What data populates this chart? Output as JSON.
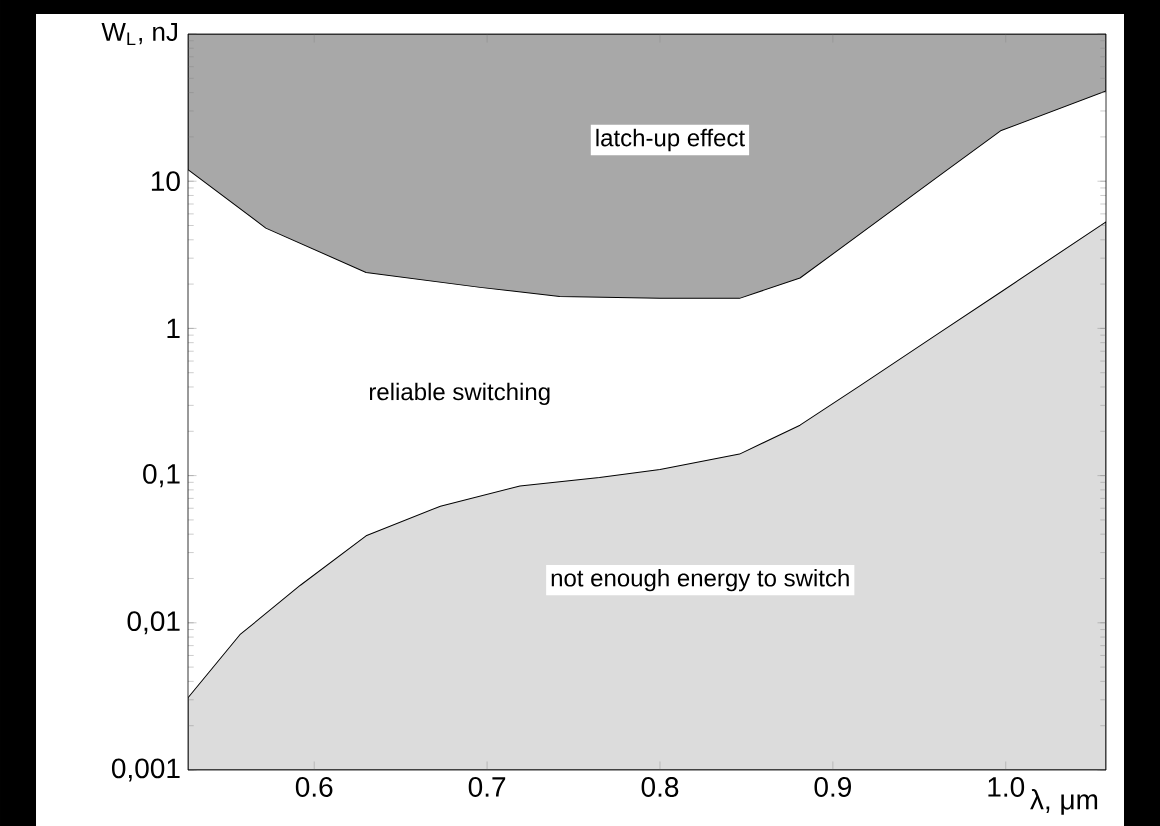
{
  "chart_data": {
    "type": "area",
    "xlabel": "λ, μm",
    "ylabel": "W$_{L}$, nJ",
    "log": "y",
    "xlim": [
      0.527,
      1.058
    ],
    "ylim": [
      0.001,
      100
    ],
    "xticks": [
      0.6,
      0.7,
      0.8,
      0.9,
      {
        "value": 1.0,
        "label": "1.0"
      }
    ],
    "yticks": [
      {
        "value": 0.001,
        "label": "0,001"
      },
      {
        "value": 0.01,
        "label": "0,01"
      },
      {
        "value": 0.1,
        "label": "0,1"
      },
      1,
      10,
      {
        "value": 100,
        "label": null
      }
    ],
    "series": [
      {
        "color": "#a8a8a8",
        "x": [
          0.527,
          0.527,
          0.572,
          0.63,
          0.696,
          0.742,
          0.8,
          0.846,
          0.881,
          0.916,
          0.962,
          0.997,
          1.058,
          1.058
        ],
        "values": [
          100,
          12,
          4.8,
          2.4,
          1.9,
          1.65,
          1.6,
          1.6,
          2.2,
          4.4,
          11,
          22,
          41,
          100
        ]
      },
      {
        "color": "#dcdcdc",
        "x": [
          0.527,
          0.527,
          0.557,
          0.592,
          0.63,
          0.673,
          0.719,
          0.765,
          0.8,
          0.846,
          0.881,
          0.916,
          0.962,
          0.997,
          1.058,
          1.058
        ],
        "values": [
          0.001,
          0.0031,
          0.0083,
          0.018,
          0.039,
          0.062,
          0.085,
          0.097,
          0.11,
          0.14,
          0.22,
          0.41,
          0.94,
          1.76,
          5.3,
          0.001
        ]
      }
    ],
    "annotations": [
      "latch-up effect",
      "reliable switching",
      "not enough energy to switch"
    ]
  }
}
